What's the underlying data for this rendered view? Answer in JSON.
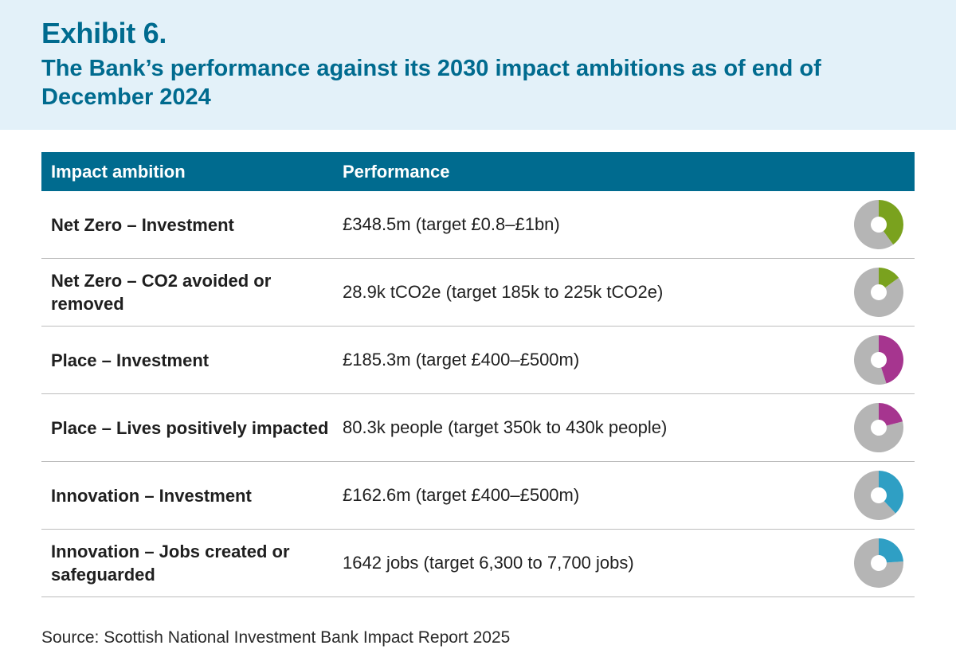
{
  "header": {
    "exhibit": "Exhibit 6.",
    "title": "The Bank’s performance against its 2030 impact ambitions as of end of December 2024"
  },
  "table": {
    "columns": {
      "ambition": "Impact ambition",
      "performance": "Performance"
    },
    "rows": [
      {
        "ambition": "Net Zero – Investment",
        "performance": "£348.5m (target £0.8–£1bn)",
        "progress": 0.4,
        "color": "#7aa21e"
      },
      {
        "ambition": "Net Zero – CO2 avoided or removed",
        "performance": "28.9k tCO2e (target 185k to 225k tCO2e)",
        "progress": 0.15,
        "color": "#7aa21e"
      },
      {
        "ambition": "Place – Investment",
        "performance": "£185.3m (target £400–£500m)",
        "progress": 0.45,
        "color": "#a6358f"
      },
      {
        "ambition": "Place – Lives positively impacted",
        "performance": "80.3k people (target 350k to 430k people)",
        "progress": 0.21,
        "color": "#a6358f"
      },
      {
        "ambition": "Innovation – Investment",
        "performance": "£162.6m (target £400–£500m)",
        "progress": 0.38,
        "color": "#2f9fc4"
      },
      {
        "ambition": "Innovation – Jobs created or safeguarded",
        "performance": "1642 jobs (target 6,300 to 7,700 jobs)",
        "progress": 0.24,
        "color": "#2f9fc4"
      }
    ],
    "donut_track_color": "#b5b5b5"
  },
  "source": "Source: Scottish National Investment Bank Impact Report 2025"
}
